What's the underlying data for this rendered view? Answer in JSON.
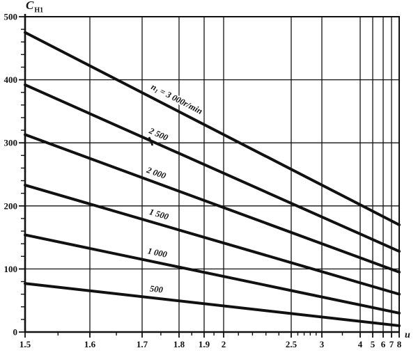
{
  "figure": {
    "y_axis_title": {
      "main": "C",
      "sub": "H1"
    },
    "x_axis_title": "u"
  },
  "chart_data": {
    "type": "line",
    "title": "",
    "xlabel": "u",
    "ylabel": "C_H1",
    "x_scale": "logarithmic (compressed hand-drawn)",
    "xlim": [
      1.5,
      8
    ],
    "ylim": [
      0,
      500
    ],
    "grid": true,
    "legend_position": "labels-on-lines",
    "line_color": "#111111",
    "background": "#ffffff",
    "x_major_ticks": [
      {
        "value": 1.5,
        "label": "1.5"
      },
      {
        "value": 1.6,
        "label": "1.6"
      },
      {
        "value": 1.7,
        "label": "1.7"
      },
      {
        "value": 1.8,
        "label": "1.8"
      },
      {
        "value": 1.9,
        "label": "1.9"
      },
      {
        "value": 2,
        "label": "2"
      },
      {
        "value": 2.5,
        "label": "2.5"
      },
      {
        "value": 3,
        "label": "3"
      },
      {
        "value": 4,
        "label": "4"
      },
      {
        "value": 5,
        "label": "5"
      },
      {
        "value": 6,
        "label": "6"
      },
      {
        "value": 7,
        "label": "7"
      },
      {
        "value": 8,
        "label": "8"
      }
    ],
    "x_minor_ticks": [
      1.55,
      1.65,
      1.75,
      1.85,
      1.95,
      2.1,
      2.2,
      2.3,
      2.4,
      2.6,
      2.7,
      2.8,
      2.9,
      3.5
    ],
    "y_major_ticks": [
      {
        "value": 0,
        "label": "0"
      },
      {
        "value": 100,
        "label": "100"
      },
      {
        "value": 200,
        "label": "200"
      },
      {
        "value": 300,
        "label": "300"
      },
      {
        "value": 400,
        "label": "400"
      },
      {
        "value": 500,
        "label": "500"
      }
    ],
    "y_minor_step": 20,
    "series": [
      {
        "rpm": 3000,
        "label": "n₁ = 3 000r/min",
        "label_parts": {
          "main": "n",
          "sub": "1",
          "rest": " = 3 000r/min"
        },
        "points": [
          [
            1.5,
            475
          ],
          [
            8,
            170
          ]
        ]
      },
      {
        "rpm": 2500,
        "label": "2 500",
        "points": [
          [
            1.5,
            392
          ],
          [
            8,
            128
          ]
        ]
      },
      {
        "rpm": 2000,
        "label": "2 000",
        "points": [
          [
            1.5,
            313
          ],
          [
            8,
            95
          ]
        ]
      },
      {
        "rpm": 1500,
        "label": "1 500",
        "points": [
          [
            1.5,
            233
          ],
          [
            8,
            60
          ]
        ]
      },
      {
        "rpm": 1000,
        "label": "1 000",
        "points": [
          [
            1.5,
            154
          ],
          [
            8,
            30
          ]
        ]
      },
      {
        "rpm": 500,
        "label": "500",
        "points": [
          [
            1.5,
            77
          ],
          [
            8,
            10
          ]
        ]
      }
    ]
  }
}
